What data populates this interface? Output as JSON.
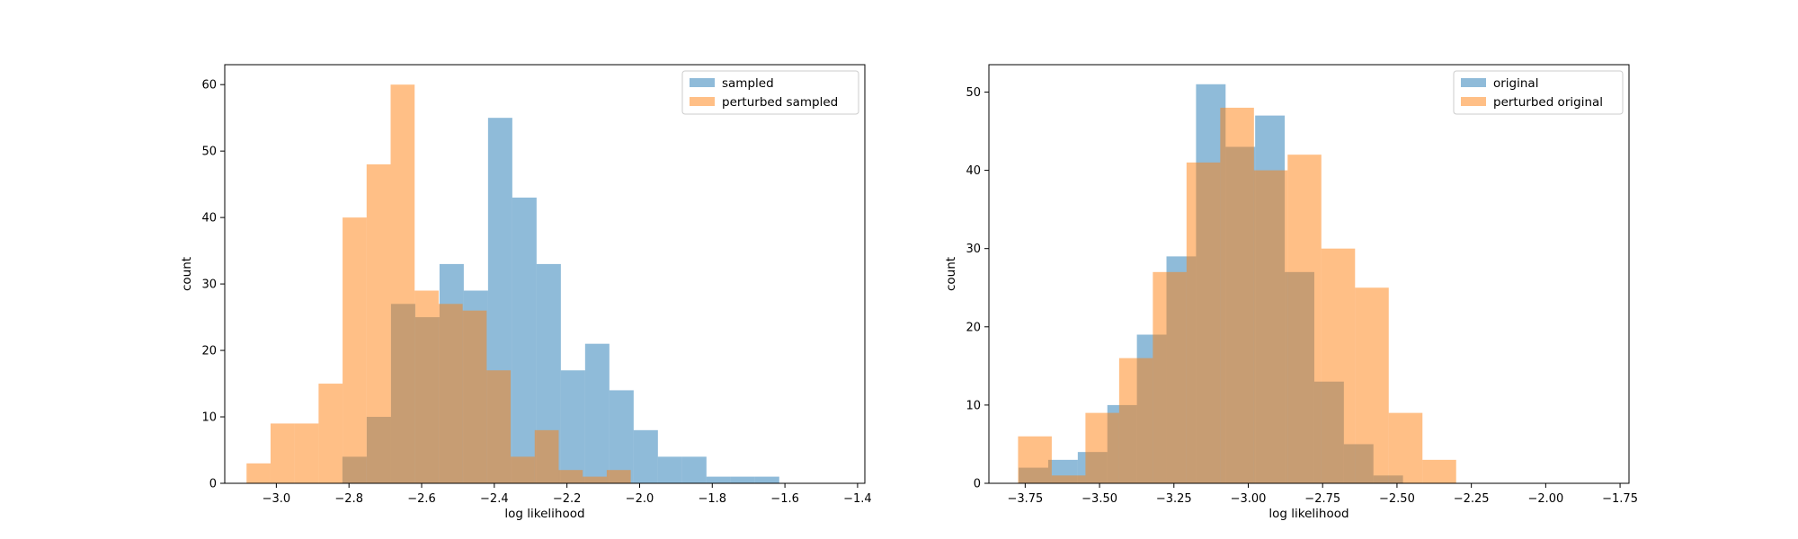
{
  "chart_data": [
    {
      "type": "histogram",
      "xlabel": "log likelihood",
      "ylabel": "count",
      "xlim": [
        -3.142,
        -1.38
      ],
      "ylim": [
        0,
        63
      ],
      "xticks": [
        -3.0,
        -2.8,
        -2.6,
        -2.4,
        -2.2,
        -2.0,
        -1.8,
        -1.6,
        -1.4
      ],
      "xtick_labels": [
        "−3.0",
        "−2.8",
        "−2.6",
        "−2.4",
        "−2.2",
        "−2.0",
        "−1.8",
        "−1.6",
        "−1.4"
      ],
      "yticks": [
        0,
        10,
        20,
        30,
        40,
        50,
        60
      ],
      "ytick_labels": [
        "0",
        "10",
        "20",
        "30",
        "40",
        "50",
        "60"
      ],
      "legend_position": "top-right",
      "series": [
        {
          "name": "sampled",
          "color": "#1f77b4",
          "alpha": 0.5,
          "bin_start": -2.818,
          "bin_width": 0.0668,
          "counts": [
            4,
            10,
            27,
            25,
            33,
            29,
            55,
            43,
            33,
            17,
            21,
            14,
            8,
            4,
            4,
            1,
            1,
            1
          ]
        },
        {
          "name": "perturbed sampled",
          "color": "#ff7f0e",
          "alpha": 0.5,
          "bin_start": -3.082,
          "bin_width": 0.0661,
          "counts": [
            3,
            9,
            9,
            15,
            40,
            48,
            60,
            29,
            27,
            26,
            17,
            4,
            8,
            2,
            1,
            2
          ]
        }
      ]
    },
    {
      "type": "histogram",
      "xlabel": "log likelihood",
      "ylabel": "count",
      "xlim": [
        -3.872,
        -1.72
      ],
      "ylim": [
        0,
        53.5
      ],
      "xticks": [
        -3.75,
        -3.5,
        -3.25,
        -3.0,
        -2.75,
        -2.5,
        -2.25,
        -2.0,
        -1.75
      ],
      "xtick_labels": [
        "−3.75",
        "−3.50",
        "−3.25",
        "−3.00",
        "−2.75",
        "−2.50",
        "−2.25",
        "−2.00",
        "−1.75"
      ],
      "yticks": [
        0,
        10,
        20,
        30,
        40,
        50
      ],
      "ytick_labels": [
        "0",
        "10",
        "20",
        "30",
        "40",
        "50"
      ],
      "legend_position": "top-right",
      "series": [
        {
          "name": "original",
          "color": "#1f77b4",
          "alpha": 0.5,
          "bin_start": -3.772,
          "bin_width": 0.0994,
          "counts": [
            2,
            3,
            4,
            10,
            19,
            29,
            51,
            43,
            47,
            27,
            13,
            5,
            1
          ]
        },
        {
          "name": "perturbed original",
          "color": "#ff7f0e",
          "alpha": 0.5,
          "bin_start": -3.774,
          "bin_width": 0.1133,
          "counts": [
            6,
            1,
            9,
            16,
            27,
            41,
            48,
            40,
            42,
            30,
            25,
            9,
            3
          ]
        }
      ]
    }
  ]
}
